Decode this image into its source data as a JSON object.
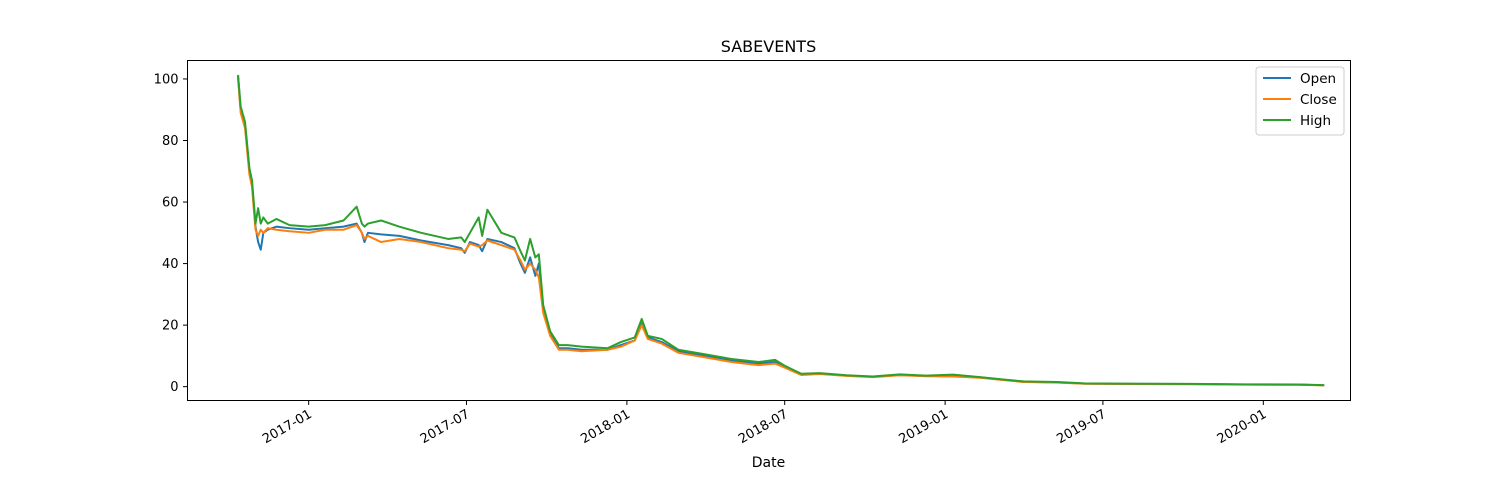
{
  "chart_data": {
    "type": "line",
    "title": "SABEVENTS",
    "xlabel": "Date",
    "ylabel": "",
    "xlim": [
      "2016-08-15",
      "2020-04-10"
    ],
    "ylim": [
      -4.5,
      106
    ],
    "yticks": [
      0,
      20,
      40,
      60,
      80,
      100
    ],
    "xticks": [
      "2017-01",
      "2017-07",
      "2018-01",
      "2018-07",
      "2019-01",
      "2019-07",
      "2020-01"
    ],
    "legend_position": "top-right",
    "grid": false,
    "series": [
      {
        "name": "Open",
        "color": "#1f77b4",
        "points": [
          [
            "2016-10-12",
            101
          ],
          [
            "2016-10-15",
            90
          ],
          [
            "2016-10-20",
            85
          ],
          [
            "2016-10-25",
            70
          ],
          [
            "2016-10-28",
            66
          ],
          [
            "2016-11-01",
            52
          ],
          [
            "2016-11-04",
            47
          ],
          [
            "2016-11-07",
            44.5
          ],
          [
            "2016-11-10",
            50
          ],
          [
            "2016-11-15",
            51
          ],
          [
            "2016-11-25",
            52
          ],
          [
            "2016-12-10",
            51.5
          ],
          [
            "2017-01-01",
            51
          ],
          [
            "2017-01-20",
            51.5
          ],
          [
            "2017-02-10",
            52
          ],
          [
            "2017-02-25",
            53
          ],
          [
            "2017-03-03",
            50
          ],
          [
            "2017-03-06",
            47
          ],
          [
            "2017-03-10",
            50
          ],
          [
            "2017-03-25",
            49.5
          ],
          [
            "2017-04-15",
            49
          ],
          [
            "2017-05-10",
            47.5
          ],
          [
            "2017-06-10",
            46
          ],
          [
            "2017-06-25",
            45
          ],
          [
            "2017-06-29",
            43.5
          ],
          [
            "2017-07-05",
            47
          ],
          [
            "2017-07-15",
            46
          ],
          [
            "2017-07-19",
            44
          ],
          [
            "2017-07-25",
            48
          ],
          [
            "2017-08-10",
            47
          ],
          [
            "2017-08-25",
            45
          ],
          [
            "2017-09-01",
            40
          ],
          [
            "2017-09-06",
            37
          ],
          [
            "2017-09-12",
            42
          ],
          [
            "2017-09-18",
            36
          ],
          [
            "2017-09-22",
            40
          ],
          [
            "2017-09-27",
            25
          ],
          [
            "2017-10-05",
            17
          ],
          [
            "2017-10-15",
            12.5
          ],
          [
            "2017-10-25",
            12.5
          ],
          [
            "2017-11-10",
            12
          ],
          [
            "2017-12-10",
            12
          ],
          [
            "2017-12-25",
            13.5
          ],
          [
            "2018-01-10",
            15
          ],
          [
            "2018-01-18",
            20.5
          ],
          [
            "2018-01-25",
            16
          ],
          [
            "2018-02-10",
            14.5
          ],
          [
            "2018-03-01",
            11.5
          ],
          [
            "2018-04-01",
            10
          ],
          [
            "2018-05-01",
            8.5
          ],
          [
            "2018-06-01",
            7.5
          ],
          [
            "2018-06-20",
            8
          ],
          [
            "2018-07-01",
            6.5
          ],
          [
            "2018-07-20",
            4
          ],
          [
            "2018-08-10",
            4.2
          ],
          [
            "2018-09-10",
            3.6
          ],
          [
            "2018-10-10",
            3.2
          ],
          [
            "2018-11-10",
            3.8
          ],
          [
            "2018-12-10",
            3.5
          ],
          [
            "2019-01-10",
            3.4
          ],
          [
            "2019-02-10",
            3
          ],
          [
            "2019-03-10",
            2.2
          ],
          [
            "2019-04-01",
            1.6
          ],
          [
            "2019-05-10",
            1.4
          ],
          [
            "2019-06-10",
            1
          ],
          [
            "2019-08-10",
            0.9
          ],
          [
            "2019-10-10",
            0.85
          ],
          [
            "2019-12-10",
            0.7
          ],
          [
            "2020-02-10",
            0.65
          ],
          [
            "2020-03-10",
            0.45
          ]
        ]
      },
      {
        "name": "Close",
        "color": "#ff7f0e",
        "points": [
          [
            "2016-10-12",
            100
          ],
          [
            "2016-10-15",
            89
          ],
          [
            "2016-10-20",
            84
          ],
          [
            "2016-10-25",
            69
          ],
          [
            "2016-10-28",
            65
          ],
          [
            "2016-11-01",
            51
          ],
          [
            "2016-11-04",
            49
          ],
          [
            "2016-11-07",
            51
          ],
          [
            "2016-11-10",
            50
          ],
          [
            "2016-11-15",
            51.5
          ],
          [
            "2016-11-25",
            51
          ],
          [
            "2016-12-10",
            50.5
          ],
          [
            "2017-01-01",
            50
          ],
          [
            "2017-01-20",
            51
          ],
          [
            "2017-02-10",
            51
          ],
          [
            "2017-02-25",
            52.5
          ],
          [
            "2017-03-03",
            50
          ],
          [
            "2017-03-06",
            48
          ],
          [
            "2017-03-10",
            49
          ],
          [
            "2017-03-25",
            47
          ],
          [
            "2017-04-15",
            48
          ],
          [
            "2017-05-10",
            47
          ],
          [
            "2017-06-10",
            45
          ],
          [
            "2017-06-25",
            44.5
          ],
          [
            "2017-06-29",
            44
          ],
          [
            "2017-07-05",
            46.5
          ],
          [
            "2017-07-15",
            45.5
          ],
          [
            "2017-07-19",
            46
          ],
          [
            "2017-07-25",
            47.5
          ],
          [
            "2017-08-10",
            46
          ],
          [
            "2017-08-25",
            44.5
          ],
          [
            "2017-09-01",
            41
          ],
          [
            "2017-09-06",
            38
          ],
          [
            "2017-09-12",
            40
          ],
          [
            "2017-09-18",
            38
          ],
          [
            "2017-09-22",
            35.5
          ],
          [
            "2017-09-27",
            24
          ],
          [
            "2017-10-05",
            16.5
          ],
          [
            "2017-10-15",
            12
          ],
          [
            "2017-10-25",
            12
          ],
          [
            "2017-11-10",
            11.5
          ],
          [
            "2017-12-10",
            12
          ],
          [
            "2017-12-25",
            13
          ],
          [
            "2018-01-10",
            15
          ],
          [
            "2018-01-18",
            20
          ],
          [
            "2018-01-25",
            15.5
          ],
          [
            "2018-02-10",
            14
          ],
          [
            "2018-03-01",
            11
          ],
          [
            "2018-04-01",
            9.5
          ],
          [
            "2018-05-01",
            8
          ],
          [
            "2018-06-01",
            7
          ],
          [
            "2018-06-20",
            7.5
          ],
          [
            "2018-07-01",
            6.2
          ],
          [
            "2018-07-20",
            3.8
          ],
          [
            "2018-08-10",
            4.1
          ],
          [
            "2018-09-10",
            3.5
          ],
          [
            "2018-10-10",
            3.1
          ],
          [
            "2018-11-10",
            3.7
          ],
          [
            "2018-12-10",
            3.4
          ],
          [
            "2019-01-10",
            3.3
          ],
          [
            "2019-02-10",
            2.9
          ],
          [
            "2019-03-10",
            2.1
          ],
          [
            "2019-04-01",
            1.5
          ],
          [
            "2019-05-10",
            1.3
          ],
          [
            "2019-06-10",
            0.95
          ],
          [
            "2019-08-10",
            0.85
          ],
          [
            "2019-10-10",
            0.8
          ],
          [
            "2019-12-10",
            0.65
          ],
          [
            "2020-02-10",
            0.6
          ],
          [
            "2020-03-10",
            0.4
          ]
        ]
      },
      {
        "name": "High",
        "color": "#2ca02c",
        "points": [
          [
            "2016-10-12",
            101
          ],
          [
            "2016-10-15",
            91
          ],
          [
            "2016-10-20",
            86
          ],
          [
            "2016-10-25",
            71
          ],
          [
            "2016-10-28",
            67
          ],
          [
            "2016-11-01",
            53
          ],
          [
            "2016-11-04",
            58
          ],
          [
            "2016-11-07",
            53
          ],
          [
            "2016-11-10",
            55
          ],
          [
            "2016-11-15",
            53
          ],
          [
            "2016-11-25",
            54.5
          ],
          [
            "2016-12-10",
            52.5
          ],
          [
            "2017-01-01",
            52
          ],
          [
            "2017-01-20",
            52.5
          ],
          [
            "2017-02-10",
            54
          ],
          [
            "2017-02-25",
            58.5
          ],
          [
            "2017-03-03",
            53
          ],
          [
            "2017-03-06",
            52
          ],
          [
            "2017-03-10",
            53
          ],
          [
            "2017-03-25",
            54
          ],
          [
            "2017-04-15",
            52
          ],
          [
            "2017-05-10",
            50
          ],
          [
            "2017-06-10",
            48
          ],
          [
            "2017-06-25",
            48.5
          ],
          [
            "2017-06-29",
            47
          ],
          [
            "2017-07-05",
            50
          ],
          [
            "2017-07-15",
            55
          ],
          [
            "2017-07-19",
            49
          ],
          [
            "2017-07-25",
            57.5
          ],
          [
            "2017-08-10",
            50
          ],
          [
            "2017-08-25",
            48.5
          ],
          [
            "2017-09-01",
            44
          ],
          [
            "2017-09-06",
            41
          ],
          [
            "2017-09-12",
            48
          ],
          [
            "2017-09-18",
            42
          ],
          [
            "2017-09-22",
            43
          ],
          [
            "2017-09-27",
            26.5
          ],
          [
            "2017-10-05",
            18
          ],
          [
            "2017-10-15",
            13.5
          ],
          [
            "2017-10-25",
            13.5
          ],
          [
            "2017-11-10",
            13
          ],
          [
            "2017-12-10",
            12.5
          ],
          [
            "2017-12-25",
            14.5
          ],
          [
            "2018-01-10",
            16
          ],
          [
            "2018-01-18",
            22
          ],
          [
            "2018-01-25",
            16.5
          ],
          [
            "2018-02-10",
            15.5
          ],
          [
            "2018-03-01",
            12
          ],
          [
            "2018-04-01",
            10.5
          ],
          [
            "2018-05-01",
            9
          ],
          [
            "2018-06-01",
            8
          ],
          [
            "2018-06-20",
            8.7
          ],
          [
            "2018-07-01",
            6.8
          ],
          [
            "2018-07-20",
            4.2
          ],
          [
            "2018-08-10",
            4.4
          ],
          [
            "2018-09-10",
            3.7
          ],
          [
            "2018-10-10",
            3.3
          ],
          [
            "2018-11-10",
            4
          ],
          [
            "2018-12-10",
            3.6
          ],
          [
            "2019-01-10",
            3.9
          ],
          [
            "2019-02-10",
            3.1
          ],
          [
            "2019-03-10",
            2.3
          ],
          [
            "2019-04-01",
            1.7
          ],
          [
            "2019-05-10",
            1.5
          ],
          [
            "2019-06-10",
            1.05
          ],
          [
            "2019-08-10",
            0.95
          ],
          [
            "2019-10-10",
            0.9
          ],
          [
            "2019-12-10",
            0.75
          ],
          [
            "2020-02-10",
            0.7
          ],
          [
            "2020-03-10",
            0.5
          ]
        ]
      }
    ]
  }
}
